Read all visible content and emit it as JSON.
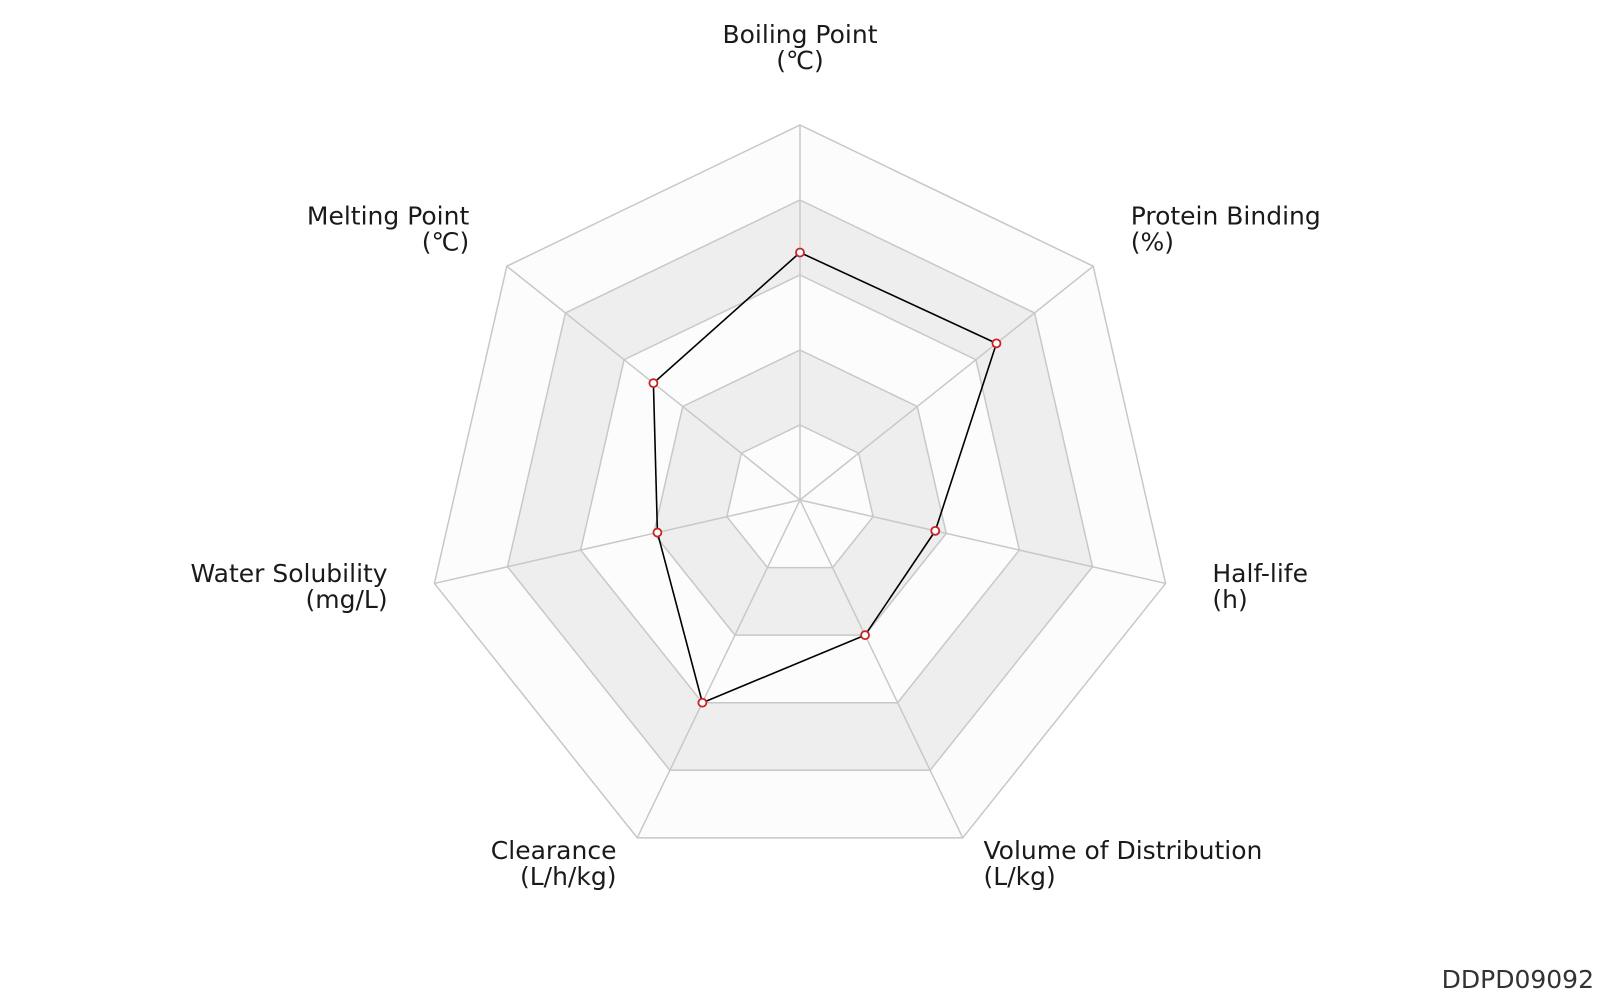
{
  "chart_data": {
    "type": "radar",
    "axes": [
      {
        "name": "Boiling Point",
        "unit": "(℃)"
      },
      {
        "name": "Protein Binding",
        "unit": "(%)"
      },
      {
        "name": "Half-life",
        "unit": "(h)"
      },
      {
        "name": "Volume of Distribution",
        "unit": "(L/kg)"
      },
      {
        "name": "Clearance",
        "unit": "(L/h/kg)"
      },
      {
        "name": "Water Solubility",
        "unit": "(mg/L)"
      },
      {
        "name": "Melting Point",
        "unit": "(℃)"
      }
    ],
    "rings": 5,
    "values": [
      0.66,
      0.67,
      0.37,
      0.4,
      0.6,
      0.39,
      0.5
    ],
    "range": [
      0,
      1
    ],
    "colors": {
      "line": "#000000",
      "marker_edge": "#cc2222",
      "marker_fill": "#ffffff",
      "band_light": "#fcfcfc",
      "band_dark": "#eeeeee",
      "grid": "#c8c8c8"
    }
  },
  "footer": {
    "id": "DDPD09092"
  }
}
